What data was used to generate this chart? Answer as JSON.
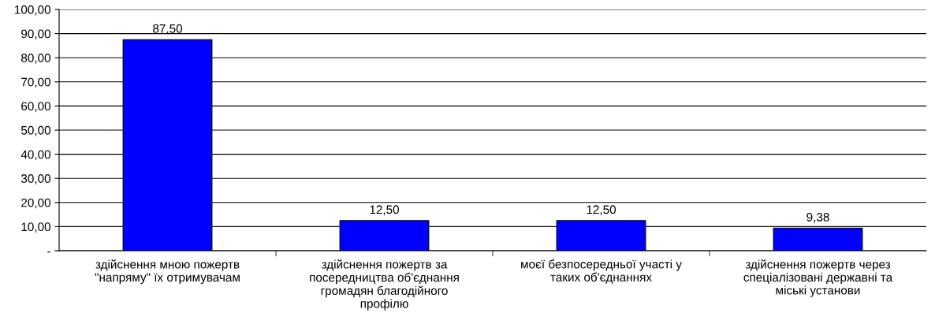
{
  "chart_data": {
    "type": "bar",
    "categories": [
      "здійснення мною пожертв\n\"напряму\" їх отримувачам",
      "здійснення пожертв за\nпосередництва об'єднання\nгромадян благодійного\nпрофілю",
      "моєї безпосередньої участі у\nтаких об'єднаннях",
      "здійснення пожертв через\nспеціалізовані державні та\nміські установи"
    ],
    "values": [
      87.5,
      12.5,
      12.5,
      9.38
    ],
    "value_labels": [
      "87,50",
      "12,50",
      "12,50",
      "9,38"
    ],
    "color": "#0000ff",
    "ylim": [
      0,
      100
    ],
    "yticks": [
      {
        "value": 0,
        "label": "-"
      },
      {
        "value": 10,
        "label": "10,00"
      },
      {
        "value": 20,
        "label": "20,00"
      },
      {
        "value": 30,
        "label": "30,00"
      },
      {
        "value": 40,
        "label": "40,00"
      },
      {
        "value": 50,
        "label": "50,00"
      },
      {
        "value": 60,
        "label": "60,00"
      },
      {
        "value": 70,
        "label": "70,00"
      },
      {
        "value": 80,
        "label": "80,00"
      },
      {
        "value": 90,
        "label": "90,00"
      },
      {
        "value": 100,
        "label": "100,00"
      }
    ],
    "grid": "y",
    "legend": false
  }
}
